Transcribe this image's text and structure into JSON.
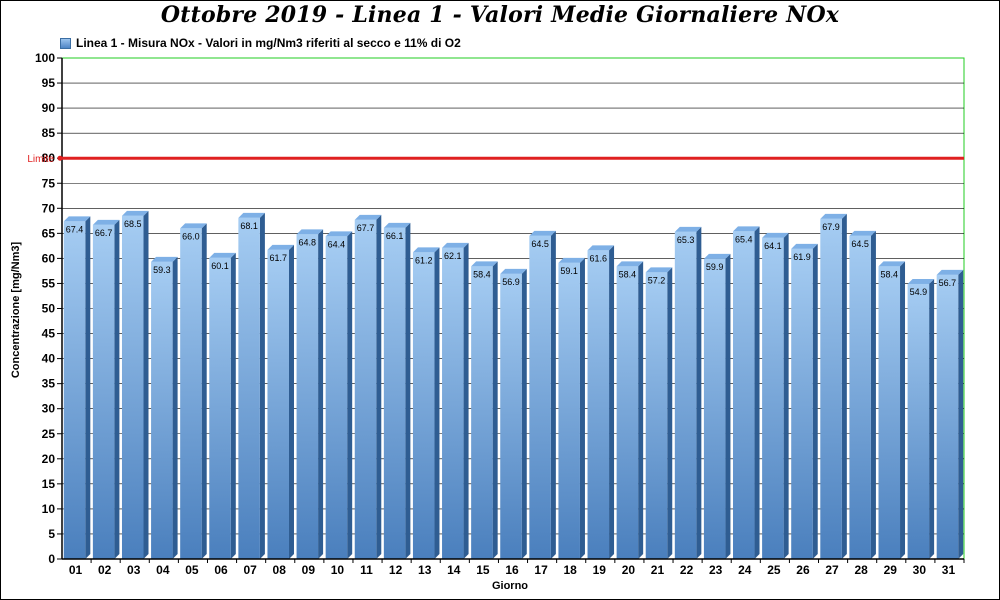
{
  "colors": {
    "bar_top": "#a6cdf3",
    "bar_bottom": "#4a7fbd",
    "bar_side": "#2f5d92",
    "bar_cap": "#7eb0e6",
    "plot_border": "#22cc22",
    "gridline": "#000000",
    "limit_line": "#e02020"
  },
  "chart_data": {
    "type": "bar",
    "title": "Ottobre 2019 - Linea 1 - Valori Medie Giornaliere NOx",
    "xlabel": "Giorno",
    "ylabel": "Concentrazione [mg/Nm3]",
    "ylim": [
      0,
      100
    ],
    "ytick_step": 5,
    "grid": true,
    "legend_position": "top-left",
    "categories": [
      "01",
      "02",
      "03",
      "04",
      "05",
      "06",
      "07",
      "08",
      "09",
      "10",
      "11",
      "12",
      "13",
      "14",
      "15",
      "16",
      "17",
      "18",
      "19",
      "20",
      "21",
      "22",
      "23",
      "24",
      "25",
      "26",
      "27",
      "28",
      "29",
      "30",
      "31"
    ],
    "series": [
      {
        "name": "Linea 1 - Misura NOx - Valori in mg/Nm3 riferiti al secco e 11% di O2",
        "values": [
          67.4,
          66.7,
          68.5,
          59.3,
          66.0,
          60.1,
          68.1,
          61.7,
          64.8,
          64.4,
          67.7,
          66.1,
          61.2,
          62.1,
          58.4,
          56.9,
          64.5,
          59.1,
          61.6,
          58.4,
          57.2,
          65.3,
          59.9,
          65.4,
          64.1,
          61.9,
          67.9,
          64.5,
          58.4,
          54.9,
          56.7
        ],
        "labels": [
          "67.4",
          "66.7",
          "68.5",
          "59.3",
          "66.0",
          "60.1",
          "68.1",
          "61.7",
          "64.8",
          "64.4",
          "67.7",
          "66.1",
          "61.2",
          "62.1",
          "58.4",
          "56.9",
          "64.5",
          "59.1",
          "61.6",
          "58.4",
          "57.2",
          "65.3",
          "59.9",
          "65.4",
          "64.1",
          "61.9",
          "67.9",
          "64.5",
          "58.4",
          "54.9",
          "56.7"
        ]
      }
    ],
    "reference_line": {
      "label": "Limite",
      "value": 80
    }
  }
}
